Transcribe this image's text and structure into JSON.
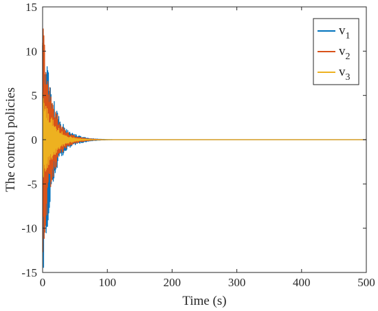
{
  "chart_data": {
    "type": "line",
    "title": "",
    "xlabel": "Time (s)",
    "ylabel": "The control policies",
    "xlim": [
      0,
      500
    ],
    "ylim": [
      -15,
      15
    ],
    "xticks": [
      0,
      100,
      200,
      300,
      400,
      500
    ],
    "yticks": [
      -15,
      -10,
      -5,
      0,
      5,
      10,
      15
    ],
    "xtick_labels": [
      "0",
      "100",
      "200",
      "300",
      "400",
      "500"
    ],
    "ytick_labels": [
      "-15",
      "-10",
      "-5",
      "0",
      "5",
      "10",
      "15"
    ],
    "grid": false,
    "legend": {
      "position": "top-right",
      "entries": [
        {
          "base": "v",
          "sub": "1"
        },
        {
          "base": "v",
          "sub": "2"
        },
        {
          "base": "v",
          "sub": "3"
        }
      ]
    },
    "series": [
      {
        "color": "#0072BD",
        "description": "oscillation envelope (upper / lower bound) at sampled times",
        "x": [
          0,
          2,
          4,
          6,
          8,
          10,
          14,
          18,
          22,
          26,
          30,
          35,
          40,
          50,
          60,
          70,
          80,
          90,
          100,
          110,
          500
        ],
        "upper": [
          15,
          14.2,
          12.5,
          11,
          9.5,
          8,
          6,
          4.5,
          3.5,
          2.5,
          2,
          1.4,
          1.0,
          0.6,
          0.35,
          0.2,
          0.1,
          0.05,
          0.02,
          0.0,
          0.0
        ],
        "lower": [
          -15,
          -14.5,
          -12.5,
          -11,
          -9.5,
          -8,
          -6,
          -4.5,
          -3.5,
          -2.5,
          -2,
          -1.4,
          -1.0,
          -0.6,
          -0.35,
          -0.2,
          -0.1,
          -0.05,
          -0.02,
          0.0,
          0.0
        ]
      },
      {
        "color": "#D95319",
        "description": "oscillation envelope (upper / lower bound) at sampled times",
        "x": [
          0,
          2,
          4,
          6,
          8,
          10,
          14,
          18,
          22,
          26,
          30,
          35,
          40,
          50,
          60,
          70,
          80,
          90,
          100,
          500
        ],
        "upper": [
          13,
          12.5,
          10.5,
          9,
          7.5,
          6.5,
          5,
          3.8,
          3,
          2.2,
          1.7,
          1.2,
          0.8,
          0.45,
          0.25,
          0.12,
          0.06,
          0.02,
          0.0,
          0.0
        ],
        "lower": [
          -13.5,
          -12.5,
          -10.5,
          -9,
          -7.5,
          -6.5,
          -5,
          -3.8,
          -3,
          -2.2,
          -1.7,
          -1.2,
          -0.8,
          -0.45,
          -0.25,
          -0.12,
          -0.06,
          -0.02,
          0.0,
          0.0
        ]
      },
      {
        "color": "#EDB120",
        "description": "oscillation envelope (upper / lower bound) at sampled times",
        "x": [
          0,
          2,
          4,
          6,
          8,
          10,
          14,
          18,
          22,
          26,
          30,
          35,
          40,
          50,
          60,
          70,
          80,
          500
        ],
        "upper": [
          5.5,
          5,
          4.5,
          4,
          3.5,
          3,
          2.5,
          2,
          1.6,
          1.2,
          0.9,
          0.6,
          0.4,
          0.2,
          0.1,
          0.04,
          0.0,
          0.0
        ],
        "lower": [
          -5.5,
          -5,
          -4.5,
          -4,
          -3.5,
          -3,
          -2.5,
          -2,
          -1.6,
          -1.2,
          -0.9,
          -0.6,
          -0.4,
          -0.2,
          -0.1,
          -0.04,
          0.0,
          0.0
        ]
      }
    ]
  }
}
